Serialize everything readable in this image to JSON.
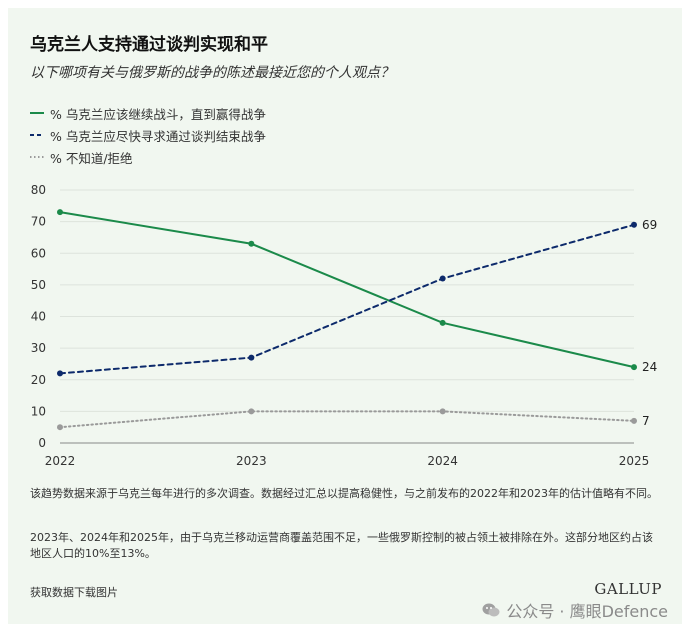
{
  "title": "乌克兰人支持通过谈判实现和平",
  "subtitle": "以下哪项有关与俄罗斯的战争的陈述最接近您的个人观点？",
  "legend": [
    {
      "label": "% 乌克兰应该继续战斗，直到赢得战争",
      "color": "#1b8a4a",
      "style": "solid"
    },
    {
      "label": "% 乌克兰应尽快寻求通过谈判结束战争",
      "color": "#0d2a6b",
      "style": "dashed"
    },
    {
      "label": "% 不知道/拒绝",
      "color": "#9a9a9a",
      "style": "dotted"
    }
  ],
  "chart_data": {
    "type": "line",
    "x": [
      "2022",
      "2023",
      "2024",
      "2025"
    ],
    "ylim": [
      0,
      80
    ],
    "yticks": [
      "0",
      "10",
      "20",
      "30",
      "40",
      "50",
      "60",
      "70",
      "80"
    ],
    "grid": true,
    "series": [
      {
        "name": "% 乌克兰应该继续战斗，直到赢得战争",
        "values": [
          73,
          63,
          38,
          24
        ],
        "color": "#1b8a4a",
        "style": "solid",
        "end_label": "24"
      },
      {
        "name": "% 乌克兰应尽快寻求通过谈判结束战争",
        "values": [
          22,
          27,
          52,
          69
        ],
        "color": "#0d2a6b",
        "style": "dashed",
        "end_label": "69"
      },
      {
        "name": "% 不知道/拒绝",
        "values": [
          5,
          10,
          10,
          7
        ],
        "color": "#9a9a9a",
        "style": "dotted",
        "end_label": "7"
      }
    ]
  },
  "notes": {
    "note1": "该趋势数据来源于乌克兰每年进行的多次调查。数据经过汇总以提高稳健性，与之前发布的2022年和2023年的估计值略有不同。",
    "note2": "2023年、2024年和2025年，由于乌克兰移动运营商覆盖范围不足，一些俄罗斯控制的被占领土被排除在外。这部分地区约占该地区人口的10%至13%。"
  },
  "download_label": "获取数据下载图片",
  "brand": "GALLUP",
  "watermark": "公众号 · 鹰眼Defence"
}
